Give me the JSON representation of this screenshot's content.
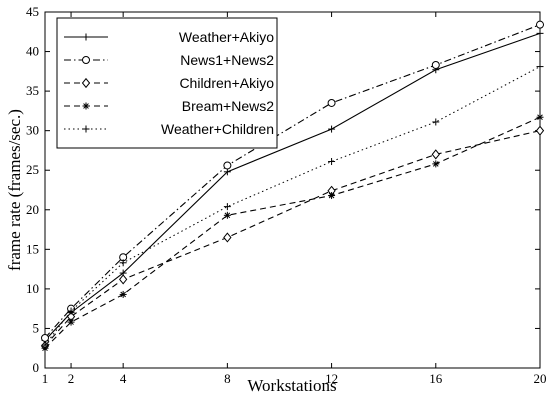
{
  "chart_data": {
    "type": "line",
    "title": "",
    "xlabel": "Workstations",
    "ylabel": "frame rate (frames/sec.)",
    "xlim": [
      1,
      20
    ],
    "ylim": [
      0,
      45
    ],
    "x": [
      1,
      2,
      4,
      8,
      12,
      16,
      20
    ],
    "xticks": [
      1,
      2,
      4,
      8,
      12,
      16,
      20
    ],
    "yticks": [
      0,
      5,
      10,
      15,
      20,
      25,
      30,
      35,
      40,
      45
    ],
    "grid": false,
    "legend_position": "top-left",
    "series": [
      {
        "name": "Weather+Akiyo",
        "values": [
          3.5,
          7.0,
          12.0,
          24.8,
          30.2,
          37.7,
          42.3
        ],
        "style": "solid",
        "marker": "plus"
      },
      {
        "name": "News1+News2",
        "values": [
          3.8,
          7.5,
          14.0,
          25.6,
          33.5,
          38.3,
          43.4
        ],
        "style": "dashdot",
        "marker": "circle"
      },
      {
        "name": "Children+Akiyo",
        "values": [
          2.8,
          6.5,
          11.2,
          16.5,
          22.4,
          27.0,
          30.0
        ],
        "style": "dashed",
        "marker": "diamond"
      },
      {
        "name": "Bream+News2",
        "values": [
          2.5,
          5.8,
          9.3,
          19.3,
          21.8,
          25.8,
          31.7
        ],
        "style": "dashed",
        "marker": "star"
      },
      {
        "name": "Weather+Children",
        "values": [
          2.9,
          7.2,
          13.3,
          20.4,
          26.1,
          31.1,
          38.1
        ],
        "style": "dotted",
        "marker": "plus"
      }
    ]
  }
}
